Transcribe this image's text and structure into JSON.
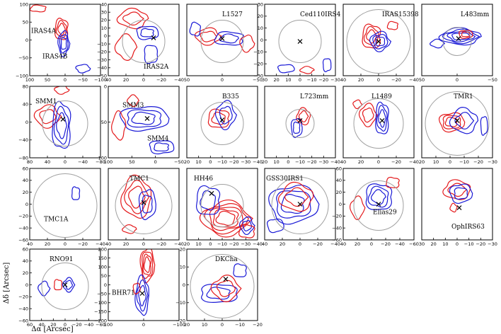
{
  "figure": {
    "xlabel": "Δα [Arcsec]",
    "ylabel": "Δδ [Arcsec]"
  },
  "colors": {
    "red": "#e41a1c",
    "blue": "#1a1ad6",
    "circle": "#a0a0a0",
    "frame": "#000000"
  },
  "chart_data": [
    {
      "type": "contour",
      "source": "IRAS4A",
      "extra_label": "IRAS4B",
      "xticks": [
        "100",
        "50",
        "0",
        "−50",
        "−100"
      ],
      "yticks": [
        "100",
        "50",
        "0",
        "−50",
        "−100"
      ],
      "xlim": [
        100,
        -100
      ],
      "ylim": [
        -100,
        100
      ],
      "circle": false,
      "marker": false
    },
    {
      "type": "contour",
      "source": "IRAS2A",
      "xticks": [
        "40",
        "20",
        "0",
        "−20",
        "−40"
      ],
      "yticks": [
        "40",
        "30",
        "20",
        "10",
        "0",
        "−10",
        "−20",
        "−30",
        "−40",
        "−50"
      ],
      "xlim": [
        40,
        -40
      ],
      "ylim": [
        -50,
        40
      ],
      "circle": true,
      "marker": true
    },
    {
      "type": "contour",
      "source": "L1527",
      "xticks": [
        "50",
        "0",
        "−50"
      ],
      "yticks": [],
      "xlim": [
        60,
        -60
      ],
      "ylim": [
        -60,
        60
      ],
      "circle": true,
      "marker": true
    },
    {
      "type": "contour",
      "source": "Ced110IRS4",
      "xticks": [
        "30",
        "20",
        "10",
        "0",
        "−10",
        "−20",
        "−30"
      ],
      "yticks": [
        "30",
        "20",
        "10",
        "0",
        "−10",
        "−20",
        "−30"
      ],
      "xlim": [
        35,
        -35
      ],
      "ylim": [
        -35,
        35
      ],
      "circle": true,
      "marker": true
    },
    {
      "type": "contour",
      "source": "IRAS15398",
      "xticks": [
        "40",
        "20",
        "0",
        "−20",
        "−40"
      ],
      "yticks": [],
      "xlim": [
        40,
        -40
      ],
      "ylim": [
        -40,
        40
      ],
      "circle": true,
      "marker": true
    },
    {
      "type": "contour",
      "source": "L483mm",
      "xticks": [
        "50",
        "0",
        "−50"
      ],
      "yticks": [],
      "xlim": [
        80,
        -80
      ],
      "ylim": [
        -80,
        80
      ],
      "circle": true,
      "marker": true
    },
    {
      "type": "contour",
      "source": "SMM1",
      "xticks": [
        "80",
        "40",
        "0",
        "−40",
        "−80"
      ],
      "yticks": [
        "80",
        "40",
        "0",
        "−40",
        "−80"
      ],
      "xlim": [
        80,
        -80
      ],
      "ylim": [
        -80,
        80
      ],
      "circle": true,
      "marker": true
    },
    {
      "type": "contour",
      "source": "SMM3",
      "extra_label": "SMM4",
      "xticks": [
        "100",
        "50",
        "0",
        "−50"
      ],
      "yticks": [
        "0",
        "50",
        "100"
      ],
      "xlim": [
        110,
        -70
      ],
      "ylim": [
        115,
        -20
      ],
      "circle": false,
      "marker": true
    },
    {
      "type": "contour",
      "source": "B335",
      "xticks": [
        "20",
        "10",
        "0",
        "−10",
        "−20",
        "−30",
        "−40"
      ],
      "yticks": [],
      "xlim": [
        40,
        -40
      ],
      "ylim": [
        -40,
        40
      ],
      "circle": true,
      "marker": true
    },
    {
      "type": "contour",
      "source": "L723mm",
      "xticks": [
        "20",
        "10",
        "0",
        "−10",
        "−20",
        "−30",
        "−40"
      ],
      "yticks": [],
      "xlim": [
        40,
        -40
      ],
      "ylim": [
        -40,
        40
      ],
      "circle": true,
      "marker": true
    },
    {
      "type": "contour",
      "source": "L1489",
      "xticks": [
        "40",
        "20",
        "0",
        "−20",
        "−40"
      ],
      "yticks": [],
      "xlim": [
        40,
        -40
      ],
      "ylim": [
        -40,
        40
      ],
      "circle": true,
      "marker": true
    },
    {
      "type": "contour",
      "source": "TMR1",
      "xticks": [
        "20",
        "10",
        "0",
        "−10",
        "−20",
        "−30"
      ],
      "yticks": [],
      "xlim": [
        35,
        -35
      ],
      "ylim": [
        -35,
        35
      ],
      "circle": true,
      "marker": true
    },
    {
      "type": "contour",
      "source": "TMC1A",
      "xticks": [
        "40",
        "20",
        "0",
        "−20",
        "−40"
      ],
      "yticks": [
        "60",
        "40",
        "20",
        "0",
        "−20",
        "−40",
        "−60"
      ],
      "xlim": [
        40,
        -40
      ],
      "ylim": [
        -60,
        60
      ],
      "circle": true,
      "marker": false
    },
    {
      "type": "contour",
      "source": "TMC1",
      "xticks": [
        "40",
        "20",
        "0",
        "−20",
        "−40"
      ],
      "yticks": [],
      "xlim": [
        40,
        -40
      ],
      "ylim": [
        -40,
        40
      ],
      "circle": true,
      "marker": true
    },
    {
      "type": "contour",
      "source": "HH46",
      "xticks": [
        "20",
        "10",
        "0",
        "−10",
        "−20",
        "−30",
        "−40"
      ],
      "yticks": [],
      "xlim": [
        20,
        -40
      ],
      "ylim": [
        -40,
        20
      ],
      "circle": true,
      "marker": true
    },
    {
      "type": "contour",
      "source": "GSS30IRS1",
      "xticks": [
        "40",
        "20",
        "0",
        "−20",
        "−40"
      ],
      "yticks": [],
      "xlim": [
        40,
        -40
      ],
      "ylim": [
        -60,
        40
      ],
      "circle": true,
      "marker": true
    },
    {
      "type": "contour",
      "source": "Elias29",
      "xticks": [
        "40",
        "20",
        "0",
        "−20",
        "−40",
        "−60"
      ],
      "yticks": [
        "60",
        "40",
        "20",
        "0",
        "−20",
        "−40",
        "−60"
      ],
      "xlim": [
        60,
        -60
      ],
      "ylim": [
        -60,
        60
      ],
      "circle": true,
      "marker": true
    },
    {
      "type": "contour",
      "source": "OphIRS63",
      "xticks": [
        "30",
        "20",
        "10",
        "0",
        "−10",
        "−20",
        "−30"
      ],
      "yticks": [],
      "xlim": [
        30,
        -30
      ],
      "ylim": [
        -30,
        30
      ],
      "circle": false,
      "marker": true
    },
    {
      "type": "contour",
      "source": "RNO91",
      "xticks": [
        "60",
        "40",
        "20",
        "0",
        "−20",
        "−40",
        "−60"
      ],
      "yticks": [
        "60",
        "40",
        "20",
        "0",
        "−20",
        "−40",
        "−60"
      ],
      "xlim": [
        60,
        -60
      ],
      "ylim": [
        -60,
        60
      ],
      "circle": true,
      "marker": true
    },
    {
      "type": "contour",
      "source": "BHR71",
      "xticks": [
        "100",
        "0",
        "−100"
      ],
      "yticks": [
        "200",
        "150",
        "100",
        "50",
        "0",
        "−50",
        "−100",
        "−150",
        "−200"
      ],
      "xlim": [
        150,
        -150
      ],
      "ylim": [
        -200,
        200
      ],
      "circle": false,
      "marker": true
    },
    {
      "type": "contour",
      "source": "DKCha",
      "xticks": [
        "20",
        "10",
        "0",
        "−10",
        "−20"
      ],
      "yticks": [
        "20",
        "10",
        "0",
        "−10",
        "−20"
      ],
      "xlim": [
        20,
        -20
      ],
      "ylim": [
        -20,
        20
      ],
      "circle": true,
      "marker": true
    }
  ]
}
